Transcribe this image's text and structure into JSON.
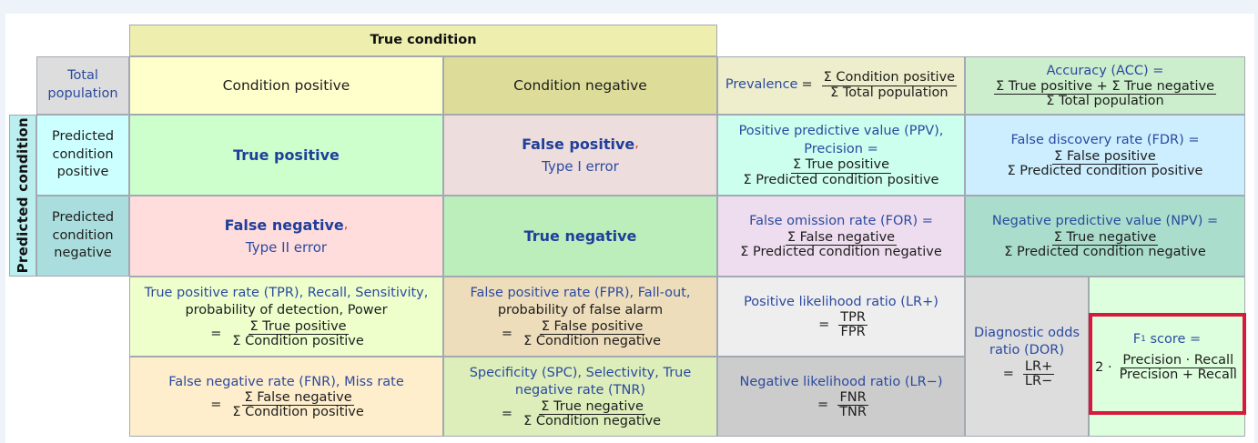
{
  "header": {
    "true_condition": "True condition",
    "predicted_condition": "Predicted condition",
    "total_population": "Total population",
    "condition_positive": "Condition positive",
    "condition_negative": "Condition negative",
    "predicted_condition_positive": "Predicted condition positive",
    "predicted_condition_negative": "Predicted condition negative"
  },
  "cells": {
    "true_positive": "True positive",
    "false_positive": "False positive",
    "false_positive_comma": ",",
    "type1": "Type I error",
    "false_negative": "False negative",
    "false_negative_comma": ",",
    "type2": "Type II error",
    "true_negative": "True negative"
  },
  "metrics": {
    "prevalence": {
      "label": "Prevalence",
      "eq": "=",
      "num": "Σ Condition positive",
      "den": "Σ Total population"
    },
    "accuracy": {
      "label": "Accuracy (ACC) =",
      "num": "Σ True positive + Σ True negative",
      "den": "Σ Total population"
    },
    "ppv": {
      "label1": "Positive predictive value (PPV),",
      "label2": "Precision =",
      "num": "Σ True positive",
      "den": "Σ Predicted condition positive"
    },
    "fdr": {
      "label": "False discovery rate (FDR) =",
      "num": "Σ False positive",
      "den": "Σ Predicted condition positive"
    },
    "for": {
      "label": "False omission rate (FOR) =",
      "num": "Σ False negative",
      "den": "Σ Predicted condition negative"
    },
    "npv": {
      "label": "Negative predictive value (NPV) =",
      "num": "Σ True negative",
      "den": "Σ Predicted condition negative"
    },
    "tpr": {
      "line1": "True positive rate (TPR), Recall, Sensitivity,",
      "line2": "probability of detection, Power",
      "eq": "=",
      "num": "Σ True positive",
      "den": "Σ Condition positive"
    },
    "fpr": {
      "line1": "False positive rate (FPR), Fall-out,",
      "line2": "probability of false alarm",
      "eq": "=",
      "num": "Σ False positive",
      "den": "Σ Condition negative"
    },
    "fnr": {
      "line1": "False negative rate (FNR), Miss rate",
      "eq": "=",
      "num": "Σ False negative",
      "den": "Σ Condition positive"
    },
    "tnr": {
      "line1": "Specificity (SPC), Selectivity, True",
      "line2": "negative rate (TNR)",
      "eq": "=",
      "num": "Σ True negative",
      "den": "Σ Condition negative"
    },
    "lrp": {
      "label": "Positive likelihood ratio (LR+)",
      "eq": "=",
      "num": "TPR",
      "den": "FPR"
    },
    "lrn": {
      "label": "Negative likelihood ratio (LR−)",
      "eq": "=",
      "num": "FNR",
      "den": "TNR"
    },
    "dor": {
      "line1": "Diagnostic odds",
      "line2": "ratio (DOR)",
      "eq": "=",
      "num": "LR+",
      "den": "LR−"
    },
    "f1": {
      "label_f": "F",
      "label_sub": "1",
      "label_rest": " score =",
      "coef": "2 ·",
      "num": "Precision · Recall",
      "den": "Precision + Recall"
    }
  },
  "colors": {
    "true_condition_bg": "#eeeeaf",
    "condition_positive_bg": "#ffffcc",
    "condition_negative_bg": "#dddd99",
    "total_population_bg": "#dddddd",
    "predicted_header_bg": "#bbeeee",
    "pcp_bg": "#ccffff",
    "pcn_bg": "#aadddd",
    "tp_bg": "#ccffcc",
    "fp_bg": "#eedddd",
    "fn_bg": "#ffdddd",
    "tn_bg": "#bbeebb",
    "highlight_border": "#d8193d"
  }
}
